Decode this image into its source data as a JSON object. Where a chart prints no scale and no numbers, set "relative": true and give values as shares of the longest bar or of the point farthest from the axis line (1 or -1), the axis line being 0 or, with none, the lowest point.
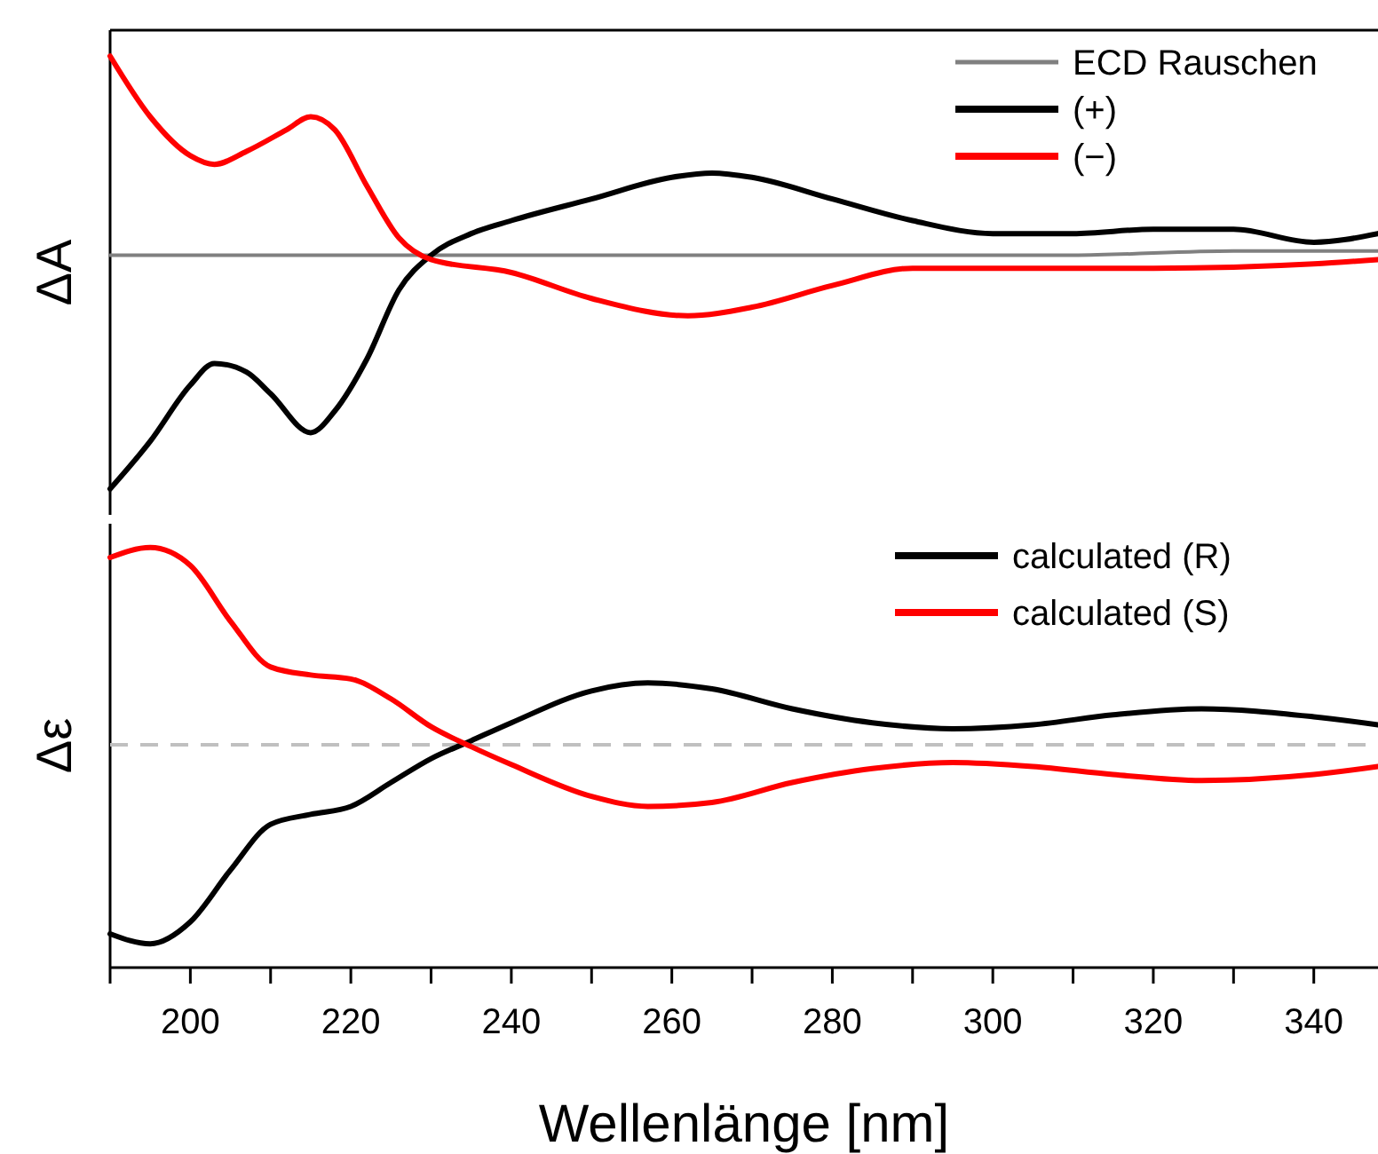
{
  "chart_data": [
    {
      "type": "line",
      "ylabel": "ΔA",
      "relative": true,
      "xlim": [
        190,
        348
      ],
      "tick_labels": false,
      "legend": "top right",
      "series": [
        {
          "name": "ECD Rauschen",
          "color": "#808080",
          "x": [
            190,
            220,
            250,
            280,
            310,
            330,
            348
          ],
          "values": [
            0.54,
            0.54,
            0.54,
            0.54,
            0.54,
            0.55,
            0.55
          ]
        },
        {
          "name": "(+)",
          "color": "#000000",
          "x": [
            190,
            195,
            200,
            203,
            207,
            210,
            215,
            218,
            222,
            226,
            230,
            235,
            240,
            250,
            260,
            265,
            270,
            280,
            290,
            300,
            310,
            320,
            330,
            340,
            348
          ],
          "values": [
            0,
            0.11,
            0.24,
            0.29,
            0.27,
            0.22,
            0.13,
            0.18,
            0.3,
            0.46,
            0.54,
            0.59,
            0.62,
            0.67,
            0.72,
            0.73,
            0.72,
            0.67,
            0.62,
            0.59,
            0.59,
            0.6,
            0.6,
            0.57,
            0.59
          ]
        },
        {
          "name": "(−)",
          "color": "#ff0000",
          "x": [
            190,
            195,
            200,
            203,
            207,
            212,
            215,
            218,
            222,
            226,
            230,
            240,
            250,
            262,
            270,
            280,
            290,
            300,
            320,
            340,
            348
          ],
          "values": [
            1,
            0.86,
            0.77,
            0.75,
            0.78,
            0.83,
            0.86,
            0.83,
            0.7,
            0.58,
            0.53,
            0.5,
            0.44,
            0.4,
            0.42,
            0.47,
            0.51,
            0.51,
            0.51,
            0.52,
            0.53
          ]
        }
      ]
    },
    {
      "type": "line",
      "ylabel": "Δε",
      "xlabel": "Wellenlänge [nm]",
      "relative": true,
      "xlim": [
        190,
        348
      ],
      "tick_labels": "x",
      "legend": "top right",
      "xticks": [
        200,
        220,
        240,
        260,
        280,
        300,
        320,
        340
      ],
      "ref_lines": [
        {
          "axis": "y",
          "value": 0,
          "color": "#c0c0c0",
          "line_style": "dashed"
        }
      ],
      "series": [
        {
          "name": "calculated (R)",
          "color": "#000000",
          "x": [
            190,
            195,
            200,
            205,
            210,
            215,
            220,
            225,
            230,
            235,
            240,
            250,
            257,
            265,
            275,
            285,
            295,
            305,
            315,
            326,
            340,
            348
          ],
          "values": [
            -0.95,
            -1,
            -0.89,
            -0.63,
            -0.4,
            -0.35,
            -0.31,
            -0.19,
            -0.07,
            0.02,
            0.11,
            0.27,
            0.31,
            0.28,
            0.18,
            0.11,
            0.08,
            0.1,
            0.15,
            0.18,
            0.14,
            0.1
          ]
        },
        {
          "name": "calculated (S)",
          "color": "#ff0000",
          "x": [
            190,
            195,
            200,
            205,
            210,
            215,
            220,
            225,
            230,
            235,
            240,
            250,
            257,
            265,
            275,
            285,
            295,
            305,
            315,
            326,
            340,
            348
          ],
          "values": [
            0.94,
            0.99,
            0.9,
            0.62,
            0.39,
            0.35,
            0.33,
            0.23,
            0.09,
            -0.01,
            -0.1,
            -0.26,
            -0.31,
            -0.29,
            -0.19,
            -0.12,
            -0.09,
            -0.11,
            -0.15,
            -0.18,
            -0.15,
            -0.11
          ]
        }
      ]
    }
  ]
}
